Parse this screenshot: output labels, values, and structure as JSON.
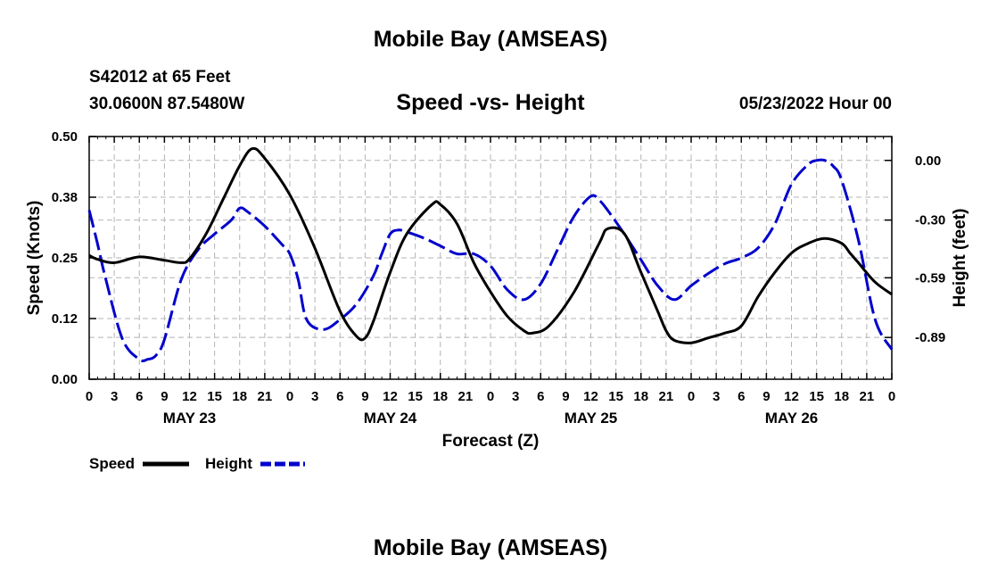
{
  "header": {
    "title": "Mobile Bay (AMSEAS)",
    "station": "S42012 at 65 Feet",
    "coords": "30.0600N  87.5480W",
    "subtitle": "Speed -vs- Height",
    "datetime": "05/23/2022 Hour 00",
    "footer_title": "Mobile Bay (AMSEAS)"
  },
  "colors": {
    "speed": "#000000",
    "height": "#0000cc",
    "grid": "#b4b4b4"
  },
  "chart_data": {
    "type": "line",
    "title": "Speed -vs- Height",
    "xlabel": "Forecast (Z)",
    "ylabel": "Speed (Knots)",
    "y2label": "Height (feet)",
    "x_unit": "hours from 05/23/2022 00Z",
    "xlim": [
      0,
      96
    ],
    "x_tick_labels": [
      "0",
      "3",
      "6",
      "9",
      "12",
      "15",
      "18",
      "21",
      "0",
      "3",
      "6",
      "9",
      "12",
      "15",
      "18",
      "21",
      "0",
      "3",
      "6",
      "9",
      "12",
      "15",
      "18",
      "21",
      "0",
      "3",
      "6",
      "9",
      "12",
      "15",
      "18",
      "21",
      "0"
    ],
    "day_labels": [
      {
        "hour": 12,
        "label": "MAY 23"
      },
      {
        "hour": 36,
        "label": "MAY 24"
      },
      {
        "hour": 60,
        "label": "MAY 25"
      },
      {
        "hour": 84,
        "label": "MAY 26"
      }
    ],
    "ylim": [
      0,
      0.5
    ],
    "y_ticks": [
      0.0,
      0.125,
      0.25,
      0.375,
      0.5
    ],
    "y_tick_labels": [
      "0.00",
      "0.12",
      "0.25",
      "0.38",
      "0.50"
    ],
    "y2lim": [
      -1.1,
      0.12
    ],
    "y2_ticks": [
      0.0,
      -0.3,
      -0.59,
      -0.89
    ],
    "y2_tick_labels": [
      "0.00",
      "-0.30",
      "-0.59",
      "-0.89"
    ],
    "legend": [
      {
        "label": "Speed",
        "series": "speed"
      },
      {
        "label": "Height",
        "series": "height"
      }
    ],
    "series": [
      {
        "name": "Speed",
        "axis": "left",
        "style": "solid",
        "x": [
          0,
          1,
          3,
          6,
          9,
          11,
          12,
          14,
          16,
          18,
          19.5,
          21,
          24,
          27,
          30,
          32,
          33,
          34,
          36,
          38,
          41,
          42,
          44,
          46,
          48,
          50,
          52,
          53,
          55,
          58,
          61,
          62,
          64,
          66,
          68,
          69,
          70,
          72,
          74,
          76,
          78,
          80,
          82,
          84,
          86,
          88,
          90,
          91,
          92,
          94,
          96
        ],
        "values": [
          0.255,
          0.247,
          0.24,
          0.252,
          0.245,
          0.24,
          0.248,
          0.3,
          0.37,
          0.44,
          0.475,
          0.455,
          0.38,
          0.27,
          0.14,
          0.088,
          0.085,
          0.12,
          0.22,
          0.3,
          0.36,
          0.36,
          0.32,
          0.24,
          0.18,
          0.13,
          0.1,
          0.095,
          0.11,
          0.18,
          0.28,
          0.31,
          0.3,
          0.22,
          0.14,
          0.1,
          0.08,
          0.075,
          0.085,
          0.095,
          0.11,
          0.17,
          0.22,
          0.26,
          0.28,
          0.29,
          0.28,
          0.26,
          0.24,
          0.2,
          0.175
        ]
      },
      {
        "name": "Height",
        "axis": "right",
        "style": "dashed",
        "x": [
          0,
          1,
          2,
          4,
          6,
          7,
          8,
          9,
          11,
          13,
          15,
          17,
          18,
          19,
          21,
          23,
          24,
          25,
          26,
          28,
          30,
          32,
          34,
          35,
          36,
          37,
          38,
          40,
          42,
          44,
          46,
          48,
          50,
          52,
          54,
          56,
          58,
          60,
          61,
          62,
          64,
          66,
          68,
          70,
          72,
          74,
          76,
          78,
          80,
          82,
          84,
          86,
          87,
          88,
          89,
          90,
          92,
          94,
          96
        ],
        "values": [
          -0.25,
          -0.42,
          -0.6,
          -0.9,
          -1.0,
          -1.0,
          -0.98,
          -0.9,
          -0.6,
          -0.45,
          -0.37,
          -0.3,
          -0.24,
          -0.26,
          -0.33,
          -0.42,
          -0.47,
          -0.6,
          -0.8,
          -0.85,
          -0.8,
          -0.72,
          -0.58,
          -0.47,
          -0.37,
          -0.35,
          -0.36,
          -0.39,
          -0.43,
          -0.47,
          -0.47,
          -0.53,
          -0.65,
          -0.7,
          -0.62,
          -0.45,
          -0.28,
          -0.18,
          -0.2,
          -0.25,
          -0.37,
          -0.5,
          -0.63,
          -0.7,
          -0.63,
          -0.57,
          -0.52,
          -0.49,
          -0.44,
          -0.32,
          -0.12,
          -0.02,
          0.0,
          0.0,
          -0.03,
          -0.1,
          -0.4,
          -0.8,
          -0.95
        ]
      }
    ]
  }
}
